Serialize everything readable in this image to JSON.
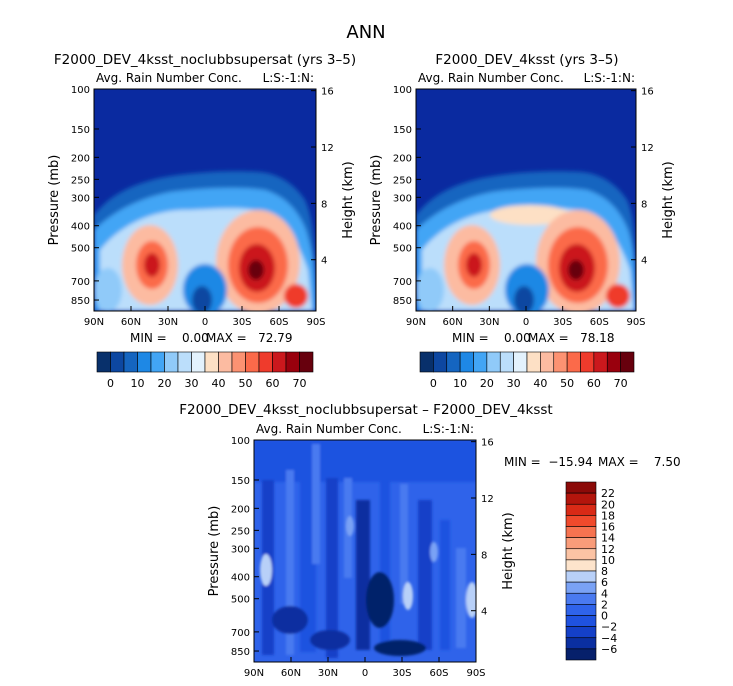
{
  "page_title": "ANN",
  "colors": {
    "rain_scale": [
      "#08306b",
      "#0d47a1",
      "#1565c0",
      "#1e88e5",
      "#42a5f5",
      "#90caf9",
      "#bbdefb",
      "#e3f2fd",
      "#fde0c5",
      "#fcbba1",
      "#fc9272",
      "#fb6a4a",
      "#ef3b2c",
      "#cb181d",
      "#99000d",
      "#67000d"
    ],
    "diff_scale": [
      "#06206b",
      "#0a2fa0",
      "#1440c8",
      "#1f52e0",
      "#2f63ea",
      "#4a7af0",
      "#7aa2f5",
      "#b8d0f8",
      "#fde4cc",
      "#fbc3a4",
      "#f99c7a",
      "#f67350",
      "#f04a2c",
      "#d92a16",
      "#b3150c",
      "#8b0a08"
    ],
    "background_blue": "#0a2aa0",
    "frame": "#000000"
  },
  "chart_data": [
    {
      "type": "heatmap",
      "panel": "top-left",
      "title": "F2000_DEV_4ksst_noclubbsupersat (yrs 3–5)",
      "subtitle": "Avg. Rain Number Conc.",
      "code": "L:S:-1:N:",
      "xlabel": "",
      "ylabel": "Pressure (mb)",
      "y2label": "Height (km)",
      "x_ticks": [
        "90N",
        "60N",
        "30N",
        "0",
        "30S",
        "60S",
        "90S"
      ],
      "x_tick_values": [
        90,
        60,
        30,
        0,
        -30,
        -60,
        -90
      ],
      "y_ticks": [
        "100",
        "150",
        "200",
        "250",
        "300",
        "400",
        "500",
        "700",
        "850"
      ],
      "y_tick_values": [
        100,
        150,
        200,
        250,
        300,
        400,
        500,
        700,
        850
      ],
      "y2_ticks": [
        "16",
        "12",
        "8",
        "4"
      ],
      "y2_tick_values": [
        16,
        12,
        8,
        4
      ],
      "ylim": [
        100,
        950
      ],
      "xlim": [
        90,
        -90
      ],
      "min_label": "MIN =    0.00",
      "max_label": "MAX =   72.79",
      "min": 0.0,
      "max": 72.79,
      "colorbar_ticks": [
        "0",
        "10",
        "20",
        "30",
        "40",
        "50",
        "60",
        "70"
      ],
      "colorbar_levels": [
        0,
        5,
        10,
        15,
        20,
        25,
        30,
        35,
        40,
        45,
        50,
        55,
        60,
        65,
        70
      ]
    },
    {
      "type": "heatmap",
      "panel": "top-right",
      "title": "F2000_DEV_4ksst (yrs 3–5)",
      "subtitle": "Avg. Rain Number Conc.",
      "code": "L:S:-1:N:",
      "xlabel": "",
      "ylabel": "Pressure (mb)",
      "y2label": "Height (km)",
      "x_ticks": [
        "90N",
        "60N",
        "30N",
        "0",
        "30S",
        "60S",
        "90S"
      ],
      "x_tick_values": [
        90,
        60,
        30,
        0,
        -30,
        -60,
        -90
      ],
      "y_ticks": [
        "100",
        "150",
        "200",
        "250",
        "300",
        "400",
        "500",
        "700",
        "850"
      ],
      "y_tick_values": [
        100,
        150,
        200,
        250,
        300,
        400,
        500,
        700,
        850
      ],
      "y2_ticks": [
        "16",
        "12",
        "8",
        "4"
      ],
      "y2_tick_values": [
        16,
        12,
        8,
        4
      ],
      "ylim": [
        100,
        950
      ],
      "xlim": [
        90,
        -90
      ],
      "min_label": "MIN =    0.00",
      "max_label": "MAX =   78.18",
      "min": 0.0,
      "max": 78.18,
      "colorbar_ticks": [
        "0",
        "10",
        "20",
        "30",
        "40",
        "50",
        "60",
        "70"
      ],
      "colorbar_levels": [
        0,
        5,
        10,
        15,
        20,
        25,
        30,
        35,
        40,
        45,
        50,
        55,
        60,
        65,
        70
      ]
    },
    {
      "type": "heatmap",
      "panel": "bottom",
      "title": "F2000_DEV_4ksst_noclubbsupersat – F2000_DEV_4ksst",
      "subtitle": "Avg. Rain Number Conc.",
      "code": "L:S:-1:N:",
      "xlabel": "",
      "ylabel": "Pressure (mb)",
      "y2label": "Height (km)",
      "x_ticks": [
        "90N",
        "60N",
        "30N",
        "0",
        "30S",
        "60S",
        "90S"
      ],
      "x_tick_values": [
        90,
        60,
        30,
        0,
        -30,
        -60,
        -90
      ],
      "y_ticks": [
        "100",
        "150",
        "200",
        "250",
        "300",
        "400",
        "500",
        "700",
        "850"
      ],
      "y_tick_values": [
        100,
        150,
        200,
        250,
        300,
        400,
        500,
        700,
        850
      ],
      "y2_ticks": [
        "16",
        "12",
        "8",
        "4"
      ],
      "y2_tick_values": [
        16,
        12,
        8,
        4
      ],
      "ylim": [
        100,
        950
      ],
      "xlim": [
        90,
        -90
      ],
      "min_label": "MIN =  −15.94",
      "max_label": "MAX =    7.50",
      "min": -15.94,
      "max": 7.5,
      "colorbar_ticks": [
        "22",
        "20",
        "18",
        "16",
        "14",
        "12",
        "10",
        "8",
        "6",
        "4",
        "2",
        "0",
        "−2",
        "−4",
        "−6"
      ],
      "colorbar_levels": [
        22,
        20,
        18,
        16,
        14,
        12,
        10,
        8,
        6,
        4,
        2,
        0,
        -2,
        -4,
        -6
      ]
    }
  ]
}
